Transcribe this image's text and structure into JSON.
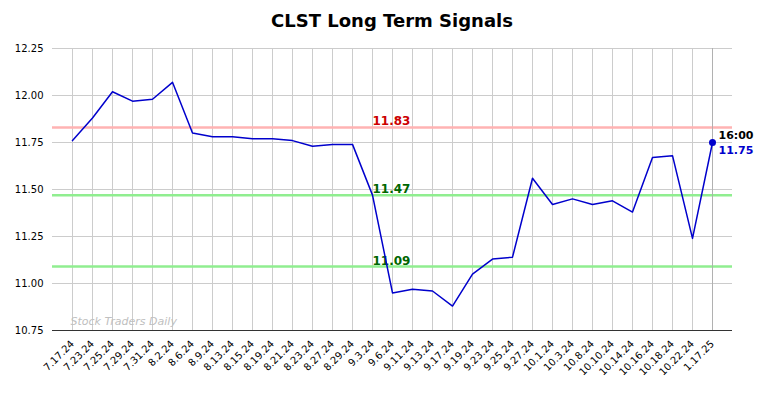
{
  "chart_data": {
    "type": "line",
    "title": "CLST Long Term Signals",
    "categories": [
      "7.17.24",
      "7.23.24",
      "7.25.24",
      "7.29.24",
      "7.31.24",
      "8.2.24",
      "8.6.24",
      "8.9.24",
      "8.13.24",
      "8.15.24",
      "8.19.24",
      "8.21.24",
      "8.23.24",
      "8.27.24",
      "8.29.24",
      "9.3.24",
      "9.6.24",
      "9.11.24",
      "9.13.24",
      "9.17.24",
      "9.19.24",
      "9.23.24",
      "9.25.24",
      "9.27.24",
      "10.1.24",
      "10.3.24",
      "10.8.24",
      "10.10.24",
      "10.14.24",
      "10.16.24",
      "10.18.24",
      "10.22.24",
      "1.17.25"
    ],
    "values": [
      11.76,
      11.88,
      12.02,
      11.97,
      11.98,
      12.07,
      11.8,
      11.78,
      11.78,
      11.77,
      11.77,
      11.76,
      11.73,
      11.74,
      11.74,
      11.47,
      10.95,
      10.97,
      10.96,
      10.88,
      11.05,
      11.13,
      11.14,
      11.56,
      11.42,
      11.45,
      11.42,
      11.44,
      11.38,
      11.67,
      11.68,
      11.24,
      11.75
    ],
    "color": "#0000cc",
    "hlines": [
      {
        "value": 11.83,
        "color": "#ffb3b3",
        "label": "11.83",
        "label_color": "#cc0000"
      },
      {
        "value": 11.47,
        "color": "#90ee90",
        "label": "11.47",
        "label_color": "#006600"
      },
      {
        "value": 11.09,
        "color": "#90ee90",
        "label": "11.09",
        "label_color": "#006600"
      }
    ],
    "annotations": [
      {
        "text": "16:00",
        "color": "#000000"
      },
      {
        "text": "11.75",
        "color": "#0000cc"
      }
    ],
    "watermark": "Stock Traders Daily",
    "ylim": [
      10.75,
      12.25
    ],
    "yticks": [
      10.75,
      {
        "value": 11.0,
        "label": "11.00"
      },
      11.25,
      {
        "value": 11.5,
        "label": "11.50"
      },
      11.75,
      {
        "value": 12.0,
        "label": "12.00"
      },
      12.25
    ],
    "grid": true
  }
}
